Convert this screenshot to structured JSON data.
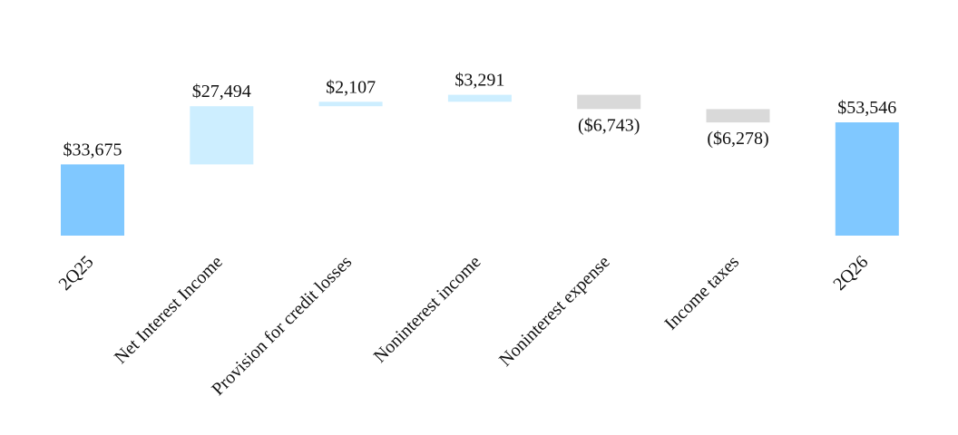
{
  "chart_data": {
    "type": "bar",
    "subtype": "waterfall",
    "title": "",
    "xlabel": "",
    "ylabel": "",
    "categories": [
      "2Q25",
      "Net Interest Income",
      "Provision for credit losses",
      "Noninterest income",
      "Noninterest expense",
      "Income taxes",
      "2Q26"
    ],
    "values": [
      33675,
      27494,
      2107,
      3291,
      -6743,
      -6278,
      53546
    ],
    "kinds": [
      "total",
      "delta",
      "delta",
      "delta",
      "delta",
      "delta",
      "total"
    ],
    "value_labels": [
      "$33,675",
      "$27,494",
      "$2,107",
      "$3,291",
      "($6,743)",
      "($6,278)",
      "$53,546"
    ],
    "colors": {
      "total": "#80c8ff",
      "increase": "#cdeeff",
      "decrease": "#d9d9d9"
    },
    "grid": false,
    "legend": "none"
  }
}
